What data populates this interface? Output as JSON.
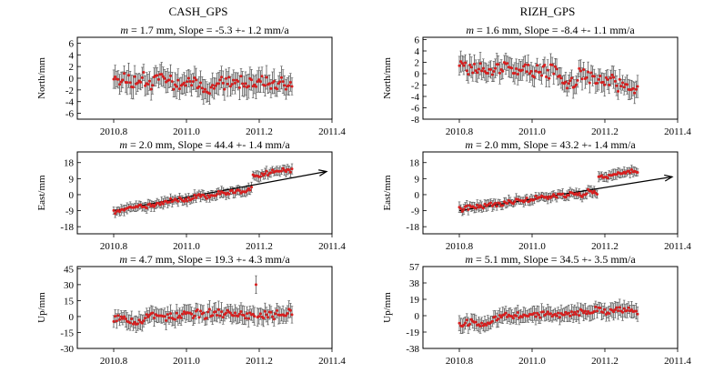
{
  "figure": {
    "stations": [
      {
        "name": "CASH_GPS"
      },
      {
        "name": "RIZH_GPS"
      }
    ]
  },
  "chart_data": [
    {
      "type": "scatter",
      "station": "CASH_GPS",
      "component": "north",
      "title_prefix": "m",
      "title_rest": " = 1.7 mm, Slope = -5.3 +- 1.2 mm/a",
      "ylabel": "North/mm",
      "xlim": [
        2010.7,
        2011.4
      ],
      "ylim": [
        -7,
        7
      ],
      "xticks": [
        2010.8,
        2011.0,
        2011.2,
        2011.4
      ],
      "xtick_labels": [
        "2010.8",
        "2011.0",
        "2011.2",
        "2011.4"
      ],
      "yticks": [
        -6,
        -4,
        -2,
        0,
        2,
        4,
        6
      ],
      "ytick_labels": [
        "-6",
        "-4",
        "-2",
        "0",
        "2",
        "4",
        "6"
      ],
      "t_start": 2010.8,
      "t_end": 2011.29,
      "n": 120,
      "trend": [
        0.6,
        -1.3
      ],
      "steps": [],
      "spike": null,
      "wobble": 1.2,
      "noise": 1.0,
      "err": 1.7,
      "seed": 11,
      "arrow": false
    },
    {
      "type": "scatter",
      "station": "RIZH_GPS",
      "component": "north",
      "title_prefix": "m",
      "title_rest": " = 1.6 mm, Slope = -8.4 +- 1.1 mm/a",
      "ylabel": "North/mm",
      "xlim": [
        2010.7,
        2011.4
      ],
      "ylim": [
        -8,
        6.4
      ],
      "xticks": [
        2010.8,
        2011.0,
        2011.2,
        2011.4
      ],
      "xtick_labels": [
        "2010.8",
        "2011.0",
        "2011.2",
        "2011.4"
      ],
      "yticks": [
        -8,
        -6,
        -4,
        -2,
        0,
        2,
        4,
        6
      ],
      "ytick_labels": [
        "-8",
        "-6",
        "-4",
        "-2",
        "0",
        "2",
        "4",
        "6"
      ],
      "t_start": 2010.8,
      "t_end": 2011.29,
      "n": 120,
      "trend": [
        2.0,
        -2.2
      ],
      "steps": [],
      "spike": null,
      "wobble": 1.3,
      "noise": 1.0,
      "err": 1.6,
      "seed": 23,
      "arrow": false
    },
    {
      "type": "scatter",
      "station": "CASH_GPS",
      "component": "east",
      "title_prefix": "m",
      "title_rest": " = 2.0 mm, Slope = 44.4 +- 1.4 mm/a",
      "ylabel": "East/mm",
      "xlim": [
        2010.7,
        2011.4
      ],
      "ylim": [
        -22,
        24
      ],
      "xticks": [
        2010.8,
        2011.0,
        2011.2,
        2011.4
      ],
      "xtick_labels": [
        "2010.8",
        "2011.0",
        "2011.2",
        "2011.4"
      ],
      "yticks": [
        -18,
        -9,
        0,
        9,
        18
      ],
      "ytick_labels": [
        "-18",
        "-9",
        "0",
        "9",
        "18"
      ],
      "t_start": 2010.8,
      "t_end": 2011.29,
      "n": 120,
      "trend": [
        -9,
        7
      ],
      "steps": [
        [
          2011.18,
          7
        ]
      ],
      "spike": null,
      "wobble": 1.0,
      "noise": 1.2,
      "err": 2.5,
      "seed": 37,
      "arrow": true,
      "arrow_line": [
        [
          2010.8,
          -9
        ],
        [
          2011.385,
          13
        ]
      ]
    },
    {
      "type": "scatter",
      "station": "RIZH_GPS",
      "component": "east",
      "title_prefix": "m",
      "title_rest": " = 2.0 mm, Slope = 43.2 +- 1.4 mm/a",
      "ylabel": "East/mm",
      "xlim": [
        2010.7,
        2011.4
      ],
      "ylim": [
        -22,
        24
      ],
      "xticks": [
        2010.8,
        2011.0,
        2011.2,
        2011.4
      ],
      "xtick_labels": [
        "2010.8",
        "2011.0",
        "2011.2",
        "2011.4"
      ],
      "yticks": [
        -18,
        -9,
        0,
        9,
        18
      ],
      "ytick_labels": [
        "-18",
        "-9",
        "0",
        "9",
        "18"
      ],
      "t_start": 2010.8,
      "t_end": 2011.29,
      "n": 120,
      "trend": [
        -8,
        5
      ],
      "steps": [
        [
          2011.18,
          8
        ]
      ],
      "spike": null,
      "wobble": 1.0,
      "noise": 1.2,
      "err": 2.5,
      "seed": 41,
      "arrow": true,
      "arrow_line": [
        [
          2010.8,
          -9
        ],
        [
          2011.385,
          10
        ]
      ]
    },
    {
      "type": "scatter",
      "station": "CASH_GPS",
      "component": "up",
      "title_prefix": "m",
      "title_rest": " = 4.7 mm, Slope = 19.3 +- 4.3 mm/a",
      "ylabel": "Up/mm",
      "xlim": [
        2010.7,
        2011.4
      ],
      "ylim": [
        -30,
        47
      ],
      "xticks": [
        2010.8,
        2011.0,
        2011.2,
        2011.4
      ],
      "xtick_labels": [
        "2010.8",
        "2011.0",
        "2011.2",
        "2011.4"
      ],
      "yticks": [
        -30,
        -15,
        0,
        15,
        30,
        45
      ],
      "ytick_labels": [
        "-30",
        "-15",
        "0",
        "15",
        "30",
        "45"
      ],
      "t_start": 2010.8,
      "t_end": 2011.29,
      "n": 120,
      "trend": [
        -1,
        3
      ],
      "steps": [],
      "spike": [
        2011.19,
        30
      ],
      "wobble": 3.0,
      "noise": 3.5,
      "err": 7,
      "seed": 53,
      "arrow": false
    },
    {
      "type": "scatter",
      "station": "RIZH_GPS",
      "component": "up",
      "title_prefix": "m",
      "title_rest": " = 5.1 mm, Slope = 34.5 +- 3.5 mm/a",
      "ylabel": "Up/mm",
      "xlim": [
        2010.7,
        2011.4
      ],
      "ylim": [
        -38,
        57
      ],
      "xticks": [
        2010.8,
        2011.0,
        2011.2,
        2011.4
      ],
      "xtick_labels": [
        "2010.8",
        "2011.0",
        "2011.2",
        "2011.4"
      ],
      "yticks": [
        -38,
        -19,
        0,
        19,
        38,
        57
      ],
      "ytick_labels": [
        "-38",
        "-19",
        "0",
        "19",
        "38",
        "57"
      ],
      "t_start": 2010.8,
      "t_end": 2011.29,
      "n": 120,
      "trend": [
        -7,
        8
      ],
      "steps": [],
      "spike": null,
      "wobble": 3.0,
      "noise": 3.5,
      "err": 8,
      "seed": 67,
      "arrow": false
    }
  ]
}
